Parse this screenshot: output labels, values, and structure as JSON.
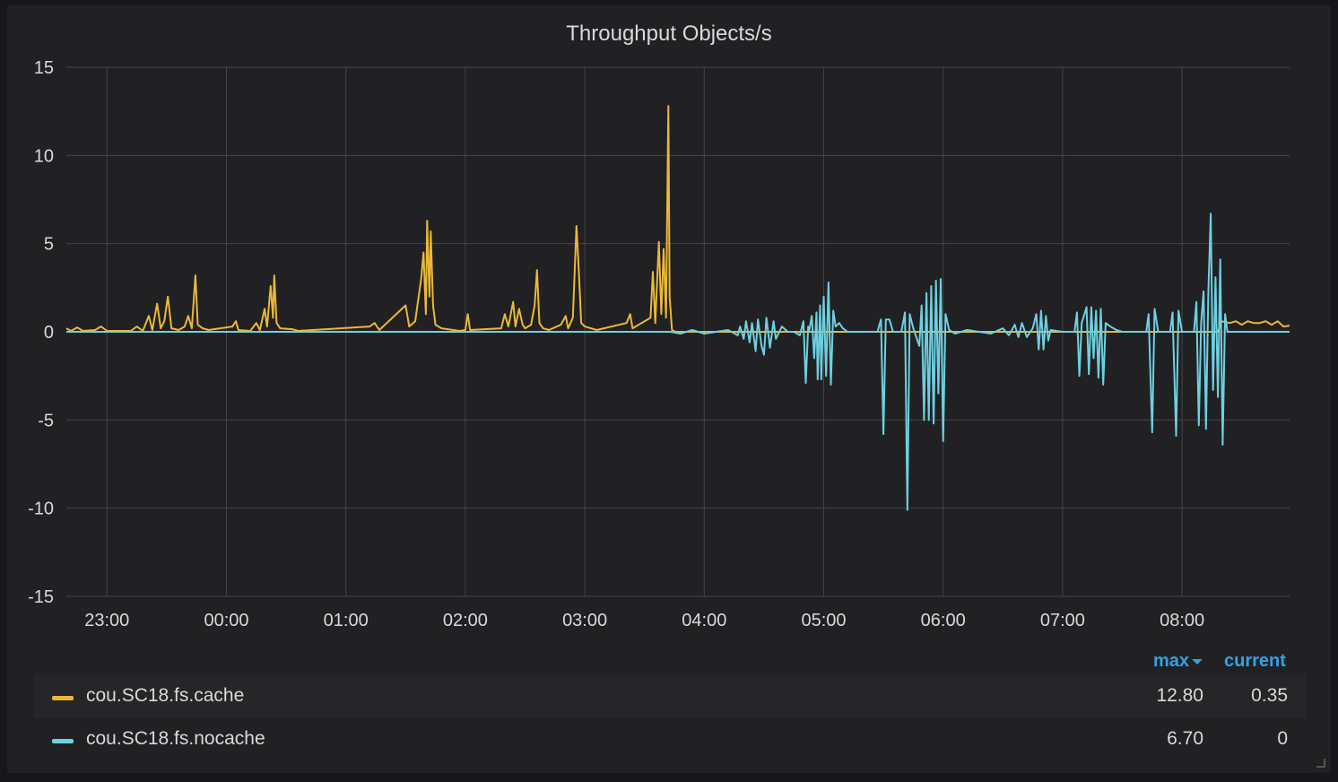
{
  "panel": {
    "title": "Throughput Objects/s"
  },
  "chart_data": {
    "type": "line",
    "title": "Throughput Objects/s",
    "x_unit": "hours (22:40 → 08:54)",
    "x_range": [
      22.66,
      32.9
    ],
    "ylim": [
      -15,
      15
    ],
    "yticks": [
      "15",
      "10",
      "5",
      "0",
      "-5",
      "-10",
      "-15"
    ],
    "xticks": [
      {
        "t": 23,
        "label": "23:00"
      },
      {
        "t": 24,
        "label": "00:00"
      },
      {
        "t": 25,
        "label": "01:00"
      },
      {
        "t": 26,
        "label": "02:00"
      },
      {
        "t": 27,
        "label": "03:00"
      },
      {
        "t": 28,
        "label": "04:00"
      },
      {
        "t": 29,
        "label": "05:00"
      },
      {
        "t": 30,
        "label": "06:00"
      },
      {
        "t": 31,
        "label": "07:00"
      },
      {
        "t": 32,
        "label": "08:00"
      }
    ],
    "grid": true,
    "series": [
      {
        "name": "cou.SC18.fs.cache",
        "color": "#eab839",
        "points": [
          [
            22.66,
            0.2
          ],
          [
            22.7,
            0.05
          ],
          [
            22.75,
            0.25
          ],
          [
            22.8,
            0.05
          ],
          [
            22.9,
            0.1
          ],
          [
            22.95,
            0.3
          ],
          [
            23.0,
            0.05
          ],
          [
            23.2,
            0.05
          ],
          [
            23.25,
            0.3
          ],
          [
            23.3,
            0.05
          ],
          [
            23.35,
            0.9
          ],
          [
            23.38,
            0.1
          ],
          [
            23.42,
            1.6
          ],
          [
            23.45,
            0.2
          ],
          [
            23.48,
            0.6
          ],
          [
            23.51,
            2.0
          ],
          [
            23.54,
            0.2
          ],
          [
            23.6,
            0.1
          ],
          [
            23.65,
            0.3
          ],
          [
            23.68,
            0.9
          ],
          [
            23.71,
            0.2
          ],
          [
            23.74,
            3.2
          ],
          [
            23.76,
            0.4
          ],
          [
            23.8,
            0.2
          ],
          [
            23.85,
            0.1
          ],
          [
            24.05,
            0.3
          ],
          [
            24.08,
            0.6
          ],
          [
            24.1,
            0.1
          ],
          [
            24.2,
            0.05
          ],
          [
            24.25,
            0.5
          ],
          [
            24.28,
            0.1
          ],
          [
            24.32,
            1.3
          ],
          [
            24.34,
            0.3
          ],
          [
            24.37,
            2.6
          ],
          [
            24.39,
            0.8
          ],
          [
            24.4,
            3.2
          ],
          [
            24.42,
            0.5
          ],
          [
            24.45,
            0.2
          ],
          [
            24.55,
            0.15
          ],
          [
            24.6,
            0.05
          ],
          [
            25.2,
            0.3
          ],
          [
            25.24,
            0.5
          ],
          [
            25.28,
            0.1
          ],
          [
            25.5,
            1.5
          ],
          [
            25.53,
            0.3
          ],
          [
            25.58,
            0.6
          ],
          [
            25.63,
            3.0
          ],
          [
            25.65,
            4.5
          ],
          [
            25.67,
            1.0
          ],
          [
            25.68,
            6.3
          ],
          [
            25.7,
            2.0
          ],
          [
            25.71,
            5.7
          ],
          [
            25.73,
            1.5
          ],
          [
            25.75,
            0.4
          ],
          [
            25.8,
            0.2
          ],
          [
            25.9,
            0.1
          ],
          [
            25.95,
            0.05
          ],
          [
            26.0,
            0.1
          ],
          [
            26.02,
            1.0
          ],
          [
            26.04,
            0.1
          ],
          [
            26.3,
            0.2
          ],
          [
            26.33,
            1.0
          ],
          [
            26.36,
            0.3
          ],
          [
            26.4,
            1.7
          ],
          [
            26.42,
            0.3
          ],
          [
            26.45,
            1.3
          ],
          [
            26.48,
            0.4
          ],
          [
            26.5,
            0.2
          ],
          [
            26.55,
            0.4
          ],
          [
            26.58,
            1.5
          ],
          [
            26.6,
            3.5
          ],
          [
            26.62,
            0.5
          ],
          [
            26.65,
            0.2
          ],
          [
            26.7,
            0.1
          ],
          [
            26.8,
            0.4
          ],
          [
            26.84,
            0.9
          ],
          [
            26.86,
            0.2
          ],
          [
            26.9,
            0.8
          ],
          [
            26.93,
            6.0
          ],
          [
            26.95,
            3.5
          ],
          [
            26.97,
            0.5
          ],
          [
            27.0,
            0.3
          ],
          [
            27.05,
            0.2
          ],
          [
            27.1,
            0.1
          ],
          [
            27.35,
            0.5
          ],
          [
            27.38,
            1.0
          ],
          [
            27.4,
            0.2
          ],
          [
            27.55,
            0.8
          ],
          [
            27.57,
            3.4
          ],
          [
            27.59,
            0.5
          ],
          [
            27.62,
            5.1
          ],
          [
            27.64,
            1.0
          ],
          [
            27.66,
            4.7
          ],
          [
            27.68,
            0.8
          ],
          [
            27.7,
            12.8
          ],
          [
            27.71,
            2.0
          ],
          [
            27.73,
            0.1
          ],
          [
            27.76,
            0.0
          ],
          [
            27.8,
            0.0
          ],
          [
            28.0,
            0.0
          ],
          [
            29.0,
            0.0
          ],
          [
            30.0,
            0.0
          ],
          [
            31.0,
            0.0
          ],
          [
            32.0,
            0.0
          ],
          [
            32.3,
            0.0
          ],
          [
            32.33,
            0.6
          ],
          [
            32.4,
            0.5
          ],
          [
            32.45,
            0.6
          ],
          [
            32.5,
            0.4
          ],
          [
            32.55,
            0.6
          ],
          [
            32.6,
            0.5
          ],
          [
            32.65,
            0.5
          ],
          [
            32.7,
            0.6
          ],
          [
            32.75,
            0.4
          ],
          [
            32.8,
            0.6
          ],
          [
            32.85,
            0.3
          ],
          [
            32.9,
            0.35
          ]
        ]
      },
      {
        "name": "cou.SC18.fs.nocache",
        "color": "#6ed0e0",
        "points": [
          [
            22.66,
            0.0
          ],
          [
            27.72,
            0.0
          ],
          [
            27.8,
            -0.1
          ],
          [
            27.9,
            0.1
          ],
          [
            28.0,
            -0.1
          ],
          [
            28.1,
            0.0
          ],
          [
            28.2,
            0.1
          ],
          [
            28.28,
            -0.2
          ],
          [
            28.3,
            0.3
          ],
          [
            28.33,
            -0.4
          ],
          [
            28.35,
            0.6
          ],
          [
            28.38,
            -0.6
          ],
          [
            28.4,
            0.5
          ],
          [
            28.43,
            -1.1
          ],
          [
            28.45,
            0.7
          ],
          [
            28.48,
            -0.8
          ],
          [
            28.5,
            -1.3
          ],
          [
            28.52,
            0.8
          ],
          [
            28.55,
            -0.9
          ],
          [
            28.58,
            0.6
          ],
          [
            28.6,
            -0.4
          ],
          [
            28.65,
            0.3
          ],
          [
            28.7,
            0.0
          ],
          [
            28.75,
            0.0
          ],
          [
            28.8,
            -0.2
          ],
          [
            28.83,
            0.6
          ],
          [
            28.85,
            -2.9
          ],
          [
            28.87,
            0.3
          ],
          [
            28.88,
            0.1
          ],
          [
            28.9,
            0.9
          ],
          [
            28.92,
            -1.5
          ],
          [
            28.94,
            1.1
          ],
          [
            28.95,
            -2.7
          ],
          [
            28.97,
            1.5
          ],
          [
            28.98,
            -2.7
          ],
          [
            29.0,
            2.0
          ],
          [
            29.02,
            -2.5
          ],
          [
            29.04,
            2.8
          ],
          [
            29.06,
            -3.0
          ],
          [
            29.08,
            1.2
          ],
          [
            29.1,
            0.3
          ],
          [
            29.13,
            0.5
          ],
          [
            29.16,
            0.2
          ],
          [
            29.2,
            0.0
          ],
          [
            29.45,
            0.0
          ],
          [
            29.48,
            0.7
          ],
          [
            29.5,
            -5.8
          ],
          [
            29.52,
            0.7
          ],
          [
            29.55,
            0.7
          ],
          [
            29.58,
            0.0
          ],
          [
            29.65,
            0.0
          ],
          [
            29.68,
            1.1
          ],
          [
            29.7,
            -10.1
          ],
          [
            29.72,
            1.0
          ],
          [
            29.75,
            0.2
          ],
          [
            29.8,
            -0.8
          ],
          [
            29.82,
            1.5
          ],
          [
            29.84,
            -5.0
          ],
          [
            29.86,
            2.2
          ],
          [
            29.88,
            -5.0
          ],
          [
            29.9,
            2.6
          ],
          [
            29.92,
            -5.2
          ],
          [
            29.94,
            2.9
          ],
          [
            29.96,
            -3.5
          ],
          [
            29.98,
            3.0
          ],
          [
            30.0,
            -6.2
          ],
          [
            30.02,
            1.0
          ],
          [
            30.05,
            0.1
          ],
          [
            30.1,
            -0.1
          ],
          [
            30.2,
            0.1
          ],
          [
            30.3,
            0.0
          ],
          [
            30.4,
            -0.1
          ],
          [
            30.5,
            0.2
          ],
          [
            30.55,
            -0.2
          ],
          [
            30.6,
            0.4
          ],
          [
            30.63,
            -0.3
          ],
          [
            30.66,
            0.5
          ],
          [
            30.7,
            -0.3
          ],
          [
            30.75,
            0.2
          ],
          [
            30.78,
            1.0
          ],
          [
            30.8,
            -1.0
          ],
          [
            30.82,
            1.2
          ],
          [
            30.84,
            -1.0
          ],
          [
            30.86,
            0.9
          ],
          [
            30.88,
            -0.5
          ],
          [
            30.9,
            0.1
          ],
          [
            31.0,
            0.0
          ],
          [
            31.1,
            0.0
          ],
          [
            31.12,
            1.1
          ],
          [
            31.14,
            -2.5
          ],
          [
            31.16,
            0.5
          ],
          [
            31.2,
            1.4
          ],
          [
            31.22,
            -2.4
          ],
          [
            31.24,
            1.4
          ],
          [
            31.26,
            -1.5
          ],
          [
            31.28,
            1.2
          ],
          [
            31.3,
            -2.6
          ],
          [
            31.32,
            1.3
          ],
          [
            31.34,
            -3.0
          ],
          [
            31.36,
            0.5
          ],
          [
            31.4,
            0.3
          ],
          [
            31.45,
            0.1
          ],
          [
            31.5,
            0.0
          ],
          [
            31.7,
            0.0
          ],
          [
            31.72,
            1.0
          ],
          [
            31.75,
            -5.7
          ],
          [
            31.77,
            1.3
          ],
          [
            31.8,
            0.0
          ],
          [
            31.9,
            0.0
          ],
          [
            31.92,
            1.1
          ],
          [
            31.95,
            -5.9
          ],
          [
            31.97,
            1.2
          ],
          [
            32.0,
            0.0
          ],
          [
            32.1,
            0.0
          ],
          [
            32.12,
            1.7
          ],
          [
            32.14,
            -5.3
          ],
          [
            32.16,
            0.5
          ],
          [
            32.18,
            2.3
          ],
          [
            32.2,
            -5.5
          ],
          [
            32.22,
            2.2
          ],
          [
            32.24,
            6.7
          ],
          [
            32.26,
            -3.3
          ],
          [
            32.28,
            3.1
          ],
          [
            32.3,
            -3.7
          ],
          [
            32.32,
            4.1
          ],
          [
            32.34,
            -6.4
          ],
          [
            32.36,
            1.0
          ],
          [
            32.38,
            0.0
          ],
          [
            32.9,
            0.0
          ]
        ]
      }
    ]
  },
  "legend": {
    "headers": {
      "max": "max",
      "current": "current"
    },
    "rows": [
      {
        "name": "cou.SC18.fs.cache",
        "color": "#eab839",
        "max": "12.80",
        "current": "0.35"
      },
      {
        "name": "cou.SC18.fs.nocache",
        "color": "#6ed0e0",
        "max": "6.70",
        "current": "0"
      }
    ]
  }
}
